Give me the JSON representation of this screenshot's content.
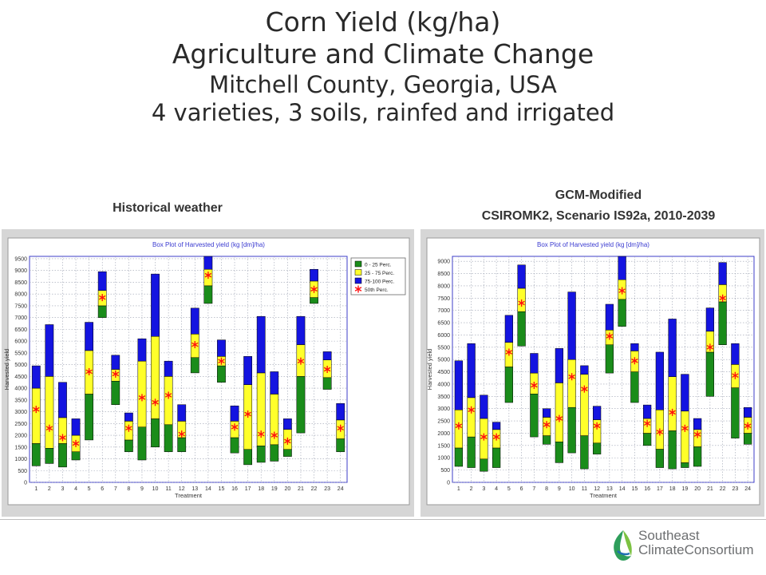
{
  "header": {
    "title_line1": "Corn Yield (kg/ha)",
    "title_line2": "Agriculture and Climate Change",
    "title_line3": "Mitchell County, Georgia, USA",
    "title_line4": "4 varieties, 3 soils, rainfed and irrigated"
  },
  "left_panel": {
    "label": "Historical weather"
  },
  "right_panel": {
    "label_line1": "GCM-Modified",
    "label_line2": "CSIROMK2, Scenario IS92a, 2010-2039"
  },
  "logo": {
    "line1": "Southeast",
    "line2": "ClimateConsortium"
  },
  "colors": {
    "low": "#1a8c1a",
    "mid": "#ffff2a",
    "high": "#1414e0",
    "median": "#ff1010",
    "plot_border": "#3c3cc8",
    "frame": "#d6d6d6"
  },
  "chart_data": [
    {
      "type": "box",
      "title": "Box Plot of Harvested yield (kg [dm]/ha)",
      "xlabel": "Treatment",
      "ylabel": "Harvested yield",
      "ylim": [
        0,
        9600
      ],
      "yticks": [
        0,
        500,
        1000,
        1500,
        2000,
        2500,
        3000,
        3500,
        4000,
        4500,
        5000,
        5500,
        6000,
        6500,
        7000,
        7500,
        8000,
        8500,
        9000,
        9500
      ],
      "categories": [
        "1",
        "2",
        "3",
        "4",
        "5",
        "6",
        "7",
        "8",
        "9",
        "10",
        "11",
        "12",
        "13",
        "14",
        "15",
        "16",
        "17",
        "18",
        "19",
        "20",
        "21",
        "22",
        "23",
        "24"
      ],
      "legend": [
        "0 - 25 Perc.",
        "25 - 75 Perc.",
        "75-100 Perc.",
        "50th Perc."
      ],
      "legend_position": "top-right",
      "boxes": [
        {
          "min": 700,
          "q1": 1650,
          "median": 3100,
          "q3": 4000,
          "max": 4950
        },
        {
          "min": 800,
          "q1": 1450,
          "median": 2300,
          "q3": 4500,
          "max": 6700
        },
        {
          "min": 650,
          "q1": 1650,
          "median": 1900,
          "q3": 2750,
          "max": 4250
        },
        {
          "min": 950,
          "q1": 1300,
          "median": 1650,
          "q3": 2000,
          "max": 2700
        },
        {
          "min": 1800,
          "q1": 3750,
          "median": 4700,
          "q3": 5600,
          "max": 6800
        },
        {
          "min": 7000,
          "q1": 7500,
          "median": 7850,
          "q3": 8150,
          "max": 8950
        },
        {
          "min": 3300,
          "q1": 4300,
          "median": 4600,
          "q3": 4800,
          "max": 5400
        },
        {
          "min": 1300,
          "q1": 1800,
          "median": 2300,
          "q3": 2600,
          "max": 2950
        },
        {
          "min": 950,
          "q1": 2350,
          "median": 3600,
          "q3": 5150,
          "max": 6100
        },
        {
          "min": 1500,
          "q1": 2700,
          "median": 3400,
          "q3": 6200,
          "max": 8850
        },
        {
          "min": 1300,
          "q1": 2450,
          "median": 3700,
          "q3": 4500,
          "max": 5150
        },
        {
          "min": 1300,
          "q1": 1900,
          "median": 2050,
          "q3": 2600,
          "max": 3300
        },
        {
          "min": 4650,
          "q1": 5300,
          "median": 5850,
          "q3": 6300,
          "max": 7400
        },
        {
          "min": 7600,
          "q1": 8350,
          "median": 8800,
          "q3": 9050,
          "max": 9600
        },
        {
          "min": 4250,
          "q1": 4950,
          "median": 5150,
          "q3": 5350,
          "max": 6050
        },
        {
          "min": 1250,
          "q1": 1900,
          "median": 2350,
          "q3": 2600,
          "max": 3250
        },
        {
          "min": 750,
          "q1": 1400,
          "median": 2900,
          "q3": 4150,
          "max": 5350
        },
        {
          "min": 850,
          "q1": 1550,
          "median": 2050,
          "q3": 4650,
          "max": 7050
        },
        {
          "min": 900,
          "q1": 1600,
          "median": 2000,
          "q3": 3750,
          "max": 4700
        },
        {
          "min": 1100,
          "q1": 1400,
          "median": 1750,
          "q3": 2250,
          "max": 2700
        },
        {
          "min": 2100,
          "q1": 4500,
          "median": 5150,
          "q3": 5850,
          "max": 7050
        },
        {
          "min": 7600,
          "q1": 7850,
          "median": 8200,
          "q3": 8550,
          "max": 9050
        },
        {
          "min": 3950,
          "q1": 4450,
          "median": 4800,
          "q3": 5200,
          "max": 5550
        },
        {
          "min": 1300,
          "q1": 1850,
          "median": 2300,
          "q3": 2650,
          "max": 3350
        }
      ]
    },
    {
      "type": "box",
      "title": "Box Plot of Harvested yield (kg [dm]/ha)",
      "xlabel": "Treatment",
      "ylabel": "Harvested yield",
      "ylim": [
        0,
        9200
      ],
      "yticks": [
        0,
        500,
        1000,
        1500,
        2000,
        2500,
        3000,
        3500,
        4000,
        4500,
        5000,
        5500,
        6000,
        6500,
        7000,
        7500,
        8000,
        8500,
        9000
      ],
      "categories": [
        "1",
        "2",
        "3",
        "4",
        "5",
        "6",
        "7",
        "8",
        "9",
        "10",
        "11",
        "12",
        "13",
        "14",
        "15",
        "16",
        "17",
        "18",
        "19",
        "20",
        "21",
        "22",
        "23",
        "24"
      ],
      "boxes": [
        {
          "min": 650,
          "q1": 1400,
          "median": 2300,
          "q3": 2950,
          "max": 4950
        },
        {
          "min": 600,
          "q1": 1850,
          "median": 2950,
          "q3": 3450,
          "max": 5650
        },
        {
          "min": 450,
          "q1": 950,
          "median": 1850,
          "q3": 2600,
          "max": 3550
        },
        {
          "min": 600,
          "q1": 1400,
          "median": 1850,
          "q3": 2150,
          "max": 2450
        },
        {
          "min": 3250,
          "q1": 4700,
          "median": 5300,
          "q3": 5700,
          "max": 6800
        },
        {
          "min": 5550,
          "q1": 6950,
          "median": 7300,
          "q3": 7900,
          "max": 8850
        },
        {
          "min": 1850,
          "q1": 3600,
          "median": 3950,
          "q3": 4450,
          "max": 5250
        },
        {
          "min": 1550,
          "q1": 1900,
          "median": 2350,
          "q3": 2650,
          "max": 3000
        },
        {
          "min": 800,
          "q1": 1650,
          "median": 2600,
          "q3": 4050,
          "max": 5450
        },
        {
          "min": 1200,
          "q1": 3050,
          "median": 4300,
          "q3": 5000,
          "max": 7750
        },
        {
          "min": 550,
          "q1": 1900,
          "median": 3800,
          "q3": 4400,
          "max": 4750
        },
        {
          "min": 1150,
          "q1": 1600,
          "median": 2300,
          "q3": 2550,
          "max": 3100
        },
        {
          "min": 4450,
          "q1": 5600,
          "median": 5950,
          "q3": 6200,
          "max": 7250
        },
        {
          "min": 6350,
          "q1": 7450,
          "median": 7800,
          "q3": 8250,
          "max": 9200
        },
        {
          "min": 3250,
          "q1": 4500,
          "median": 4950,
          "q3": 5350,
          "max": 5650
        },
        {
          "min": 1500,
          "q1": 2000,
          "median": 2400,
          "q3": 2600,
          "max": 3150
        },
        {
          "min": 600,
          "q1": 1350,
          "median": 2050,
          "q3": 2950,
          "max": 5300
        },
        {
          "min": 550,
          "q1": 2100,
          "median": 2850,
          "q3": 4300,
          "max": 6650
        },
        {
          "min": 600,
          "q1": 800,
          "median": 2200,
          "q3": 2900,
          "max": 4400
        },
        {
          "min": 650,
          "q1": 1450,
          "median": 1950,
          "q3": 2150,
          "max": 2600
        },
        {
          "min": 3500,
          "q1": 5300,
          "median": 5500,
          "q3": 6150,
          "max": 7100
        },
        {
          "min": 5600,
          "q1": 7350,
          "median": 7500,
          "q3": 8050,
          "max": 8950
        },
        {
          "min": 1800,
          "q1": 3850,
          "median": 4350,
          "q3": 4800,
          "max": 5650
        },
        {
          "min": 1550,
          "q1": 2000,
          "median": 2300,
          "q3": 2650,
          "max": 3050
        }
      ]
    }
  ]
}
